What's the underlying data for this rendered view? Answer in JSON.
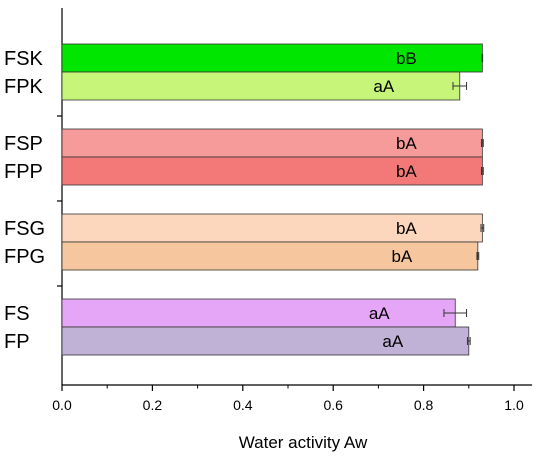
{
  "chart_data": {
    "type": "bar",
    "orientation": "horizontal",
    "xlabel": "Water activity Aw",
    "xlim": [
      0,
      1.04
    ],
    "xticks": [
      "0.0",
      "0.2",
      "0.4",
      "0.6",
      "0.8",
      "1.0"
    ],
    "xtick_values": [
      0,
      0.2,
      0.4,
      0.6,
      0.8,
      1.0
    ],
    "grid": false,
    "groups": [
      {
        "bars": [
          {
            "category": "FSK",
            "value": 0.93,
            "error": 0.0,
            "label": "bB",
            "color": "#00e600"
          },
          {
            "category": "FPK",
            "value": 0.88,
            "error": 0.015,
            "label": "aA",
            "color": "#c6f57a"
          }
        ]
      },
      {
        "bars": [
          {
            "category": "FSP",
            "value": 0.93,
            "error": 0.002,
            "label": "bA",
            "color": "#f79a9a"
          },
          {
            "category": "FPP",
            "value": 0.93,
            "error": 0.002,
            "label": "bA",
            "color": "#f37878"
          }
        ]
      },
      {
        "bars": [
          {
            "category": "FSG",
            "value": 0.93,
            "error": 0.003,
            "label": "bA",
            "color": "#fdd7bd"
          },
          {
            "category": "FPG",
            "value": 0.92,
            "error": 0.002,
            "label": "bA",
            "color": "#f6c79e"
          }
        ]
      },
      {
        "bars": [
          {
            "category": "FS",
            "value": 0.87,
            "error": 0.025,
            "label": "aA",
            "color": "#e6a6f7"
          },
          {
            "category": "FP",
            "value": 0.9,
            "error": 0.003,
            "label": "aA",
            "color": "#c0b2d6"
          }
        ]
      }
    ]
  }
}
